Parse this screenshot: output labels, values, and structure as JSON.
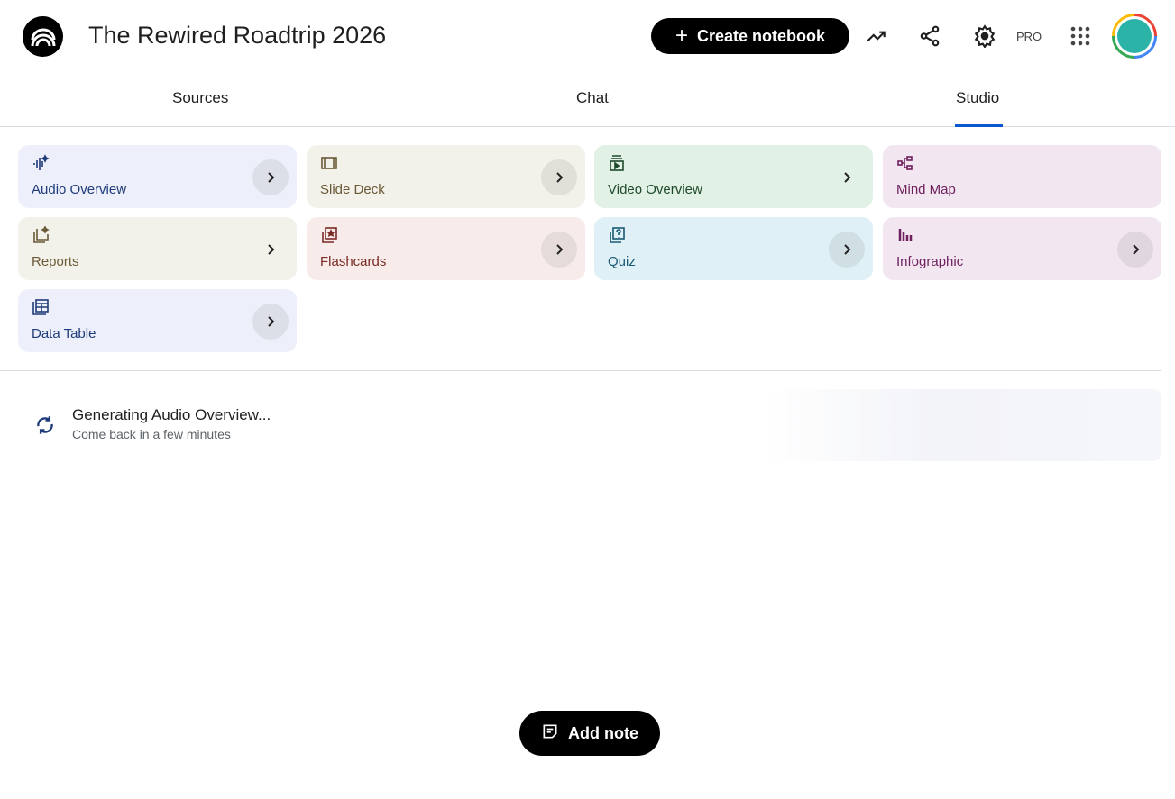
{
  "header": {
    "title": "The Rewired Roadtrip 2026",
    "create_label": "Create notebook",
    "pro_label": "PRO",
    "icons": [
      "notebooklm-logo-icon",
      "analytics-icon",
      "share-icon",
      "settings-icon",
      "apps-grid-icon",
      "avatar"
    ]
  },
  "tabs": [
    {
      "label": "Sources"
    },
    {
      "label": "Chat"
    },
    {
      "label": "Studio",
      "active": true
    }
  ],
  "studio": {
    "cards": [
      {
        "label": "Audio Overview",
        "icon": "audio-waveform-icon",
        "bg": "#edeffa",
        "fg": "#1f3b7a",
        "chevron": "circle"
      },
      {
        "label": "Slide Deck",
        "icon": "slides-icon",
        "bg": "#f2f1ea",
        "fg": "#6b5a37",
        "chevron": "circle"
      },
      {
        "label": "Video Overview",
        "icon": "video-icon",
        "bg": "#e2f1e6",
        "fg": "#1e4a2a",
        "chevron": "plain"
      },
      {
        "label": "Mind Map",
        "icon": "mind-map-icon",
        "bg": "#f2e7f1",
        "fg": "#6e1f5e",
        "chevron": "none"
      },
      {
        "label": "Reports",
        "icon": "reports-icon",
        "bg": "#f2f1ea",
        "fg": "#6b5a37",
        "chevron": "plain"
      },
      {
        "label": "Flashcards",
        "icon": "flashcards-icon",
        "bg": "#f7ecea",
        "fg": "#7a2a24",
        "chevron": "circle"
      },
      {
        "label": "Quiz",
        "icon": "quiz-icon",
        "bg": "#dff0f6",
        "fg": "#1a5a75",
        "chevron": "circle"
      },
      {
        "label": "Infographic",
        "icon": "infographic-icon",
        "bg": "#f2e7f1",
        "fg": "#6e1f5e",
        "chevron": "circle"
      },
      {
        "label": "Data Table",
        "icon": "data-table-icon",
        "bg": "#edeffa",
        "fg": "#1f3b7a",
        "chevron": "circle"
      }
    ]
  },
  "generating": {
    "title": "Generating Audio Overview...",
    "subtitle": "Come back in a few minutes",
    "icon": "sync-icon"
  },
  "add_note_label": "Add note"
}
